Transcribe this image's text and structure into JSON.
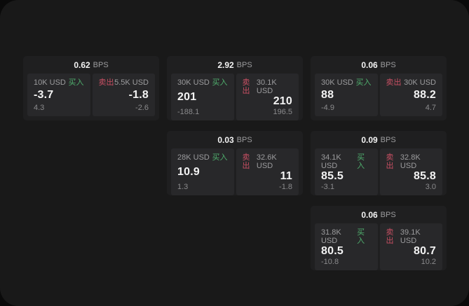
{
  "labels": {
    "bps_unit": "BPS",
    "buy": "买入",
    "sell": "卖出"
  },
  "colors": {
    "buy": "#4fae6d",
    "sell": "#c84f63"
  },
  "cards": [
    {
      "bps": "0.62",
      "buy": {
        "notional": "10K USD",
        "price": "-3.7",
        "sub": "4.3"
      },
      "sell": {
        "notional": "5.5K USD",
        "price": "-1.8",
        "sub": "-2.6"
      }
    },
    {
      "bps": "2.92",
      "buy": {
        "notional": "30K USD",
        "price": "201",
        "sub": "-188.1"
      },
      "sell": {
        "notional": "30.1K USD",
        "price": "210",
        "sub": "196.5"
      }
    },
    {
      "bps": "0.06",
      "buy": {
        "notional": "30K USD",
        "price": "88",
        "sub": "-4.9"
      },
      "sell": {
        "notional": "30K USD",
        "price": "88.2",
        "sub": "4.7"
      }
    },
    {
      "bps": "0.03",
      "buy": {
        "notional": "28K USD",
        "price": "10.9",
        "sub": "1.3"
      },
      "sell": {
        "notional": "32.6K USD",
        "price": "11",
        "sub": "-1.8"
      }
    },
    {
      "bps": "0.09",
      "buy": {
        "notional": "34.1K USD",
        "price": "85.5",
        "sub": "-3.1"
      },
      "sell": {
        "notional": "32.8K USD",
        "price": "85.8",
        "sub": "3.0"
      }
    },
    {
      "bps": "0.06",
      "buy": {
        "notional": "31.8K USD",
        "price": "80.5",
        "sub": "-10.8"
      },
      "sell": {
        "notional": "39.1K USD",
        "price": "80.7",
        "sub": "10.2"
      }
    }
  ]
}
